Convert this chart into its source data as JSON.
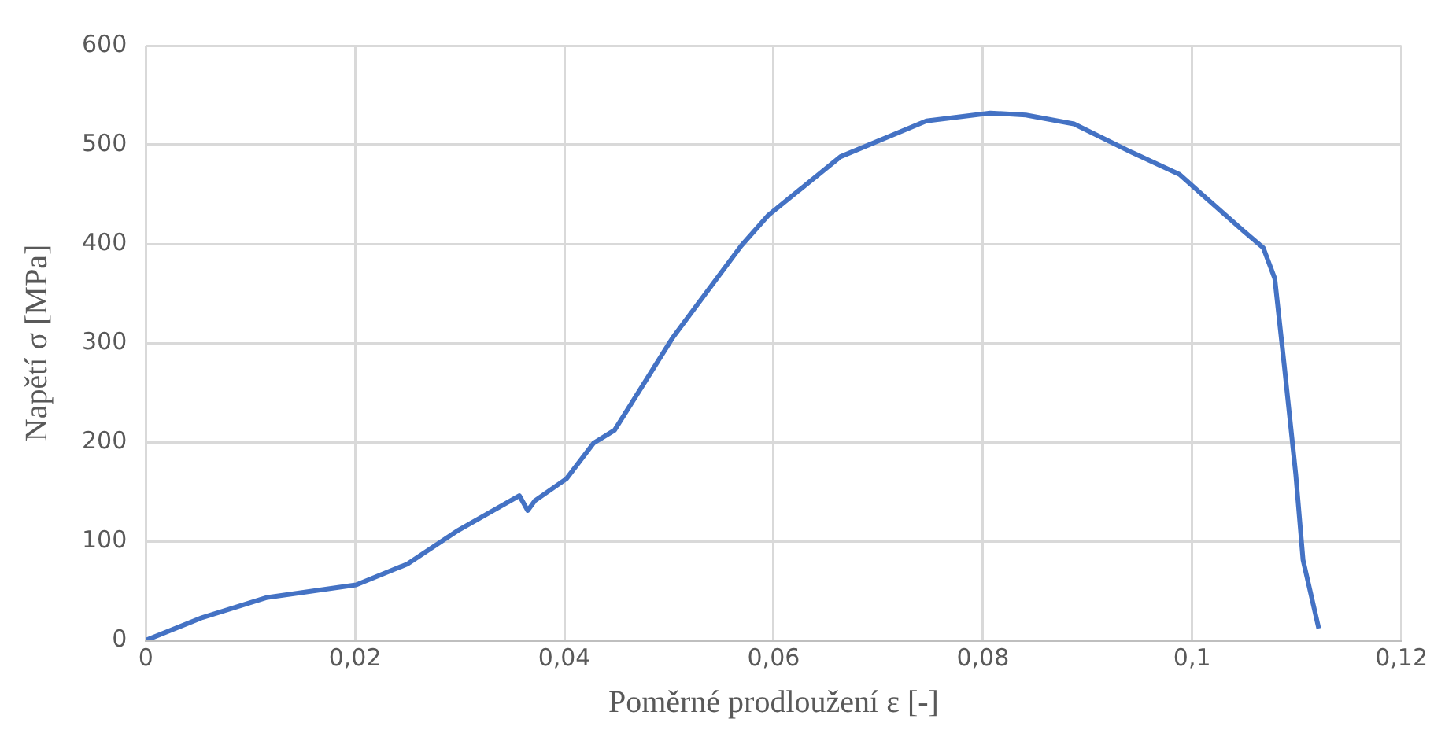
{
  "chart_data": {
    "type": "line",
    "xlabel": "Poměrné prodloužení ε [-]",
    "ylabel": "Napětí σ [MPa]",
    "xlim": [
      0,
      0.12
    ],
    "xticks": [
      0,
      {
        "value": 0.02,
        "label": "0,02"
      },
      {
        "value": 0.04,
        "label": "0,04"
      },
      {
        "value": 0.06,
        "label": "0,06"
      },
      {
        "value": 0.08,
        "label": "0,08"
      },
      {
        "value": 0.1,
        "label": "0,1"
      },
      {
        "value": 0.12,
        "label": "0,12"
      }
    ],
    "ylim": [
      0,
      600
    ],
    "yticks": [
      0,
      100,
      200,
      300,
      400,
      500,
      600
    ],
    "grid": true,
    "legend": false,
    "marker": "none",
    "line_style": "solid",
    "series": [
      {
        "color": "#4472c4",
        "x": [
          0,
          0.0054,
          0.0115,
          0.0201,
          0.025,
          0.0297,
          0.0357,
          0.0365,
          0.0372,
          0.0402,
          0.0428,
          0.0448,
          0.0504,
          0.0569,
          0.0595,
          0.0664,
          0.0746,
          0.0807,
          0.0841,
          0.0887,
          0.0943,
          0.0988,
          0.1049,
          0.1068,
          0.1079,
          0.1088,
          0.1099,
          0.1106,
          0.1121
        ],
        "values": [
          0,
          23,
          43,
          56,
          77,
          110,
          146,
          131,
          141,
          163,
          199,
          212,
          306,
          398,
          429,
          488,
          524,
          532,
          530,
          521,
          492,
          470,
          413,
          396,
          365,
          278,
          168,
          81,
          12
        ]
      }
    ]
  }
}
